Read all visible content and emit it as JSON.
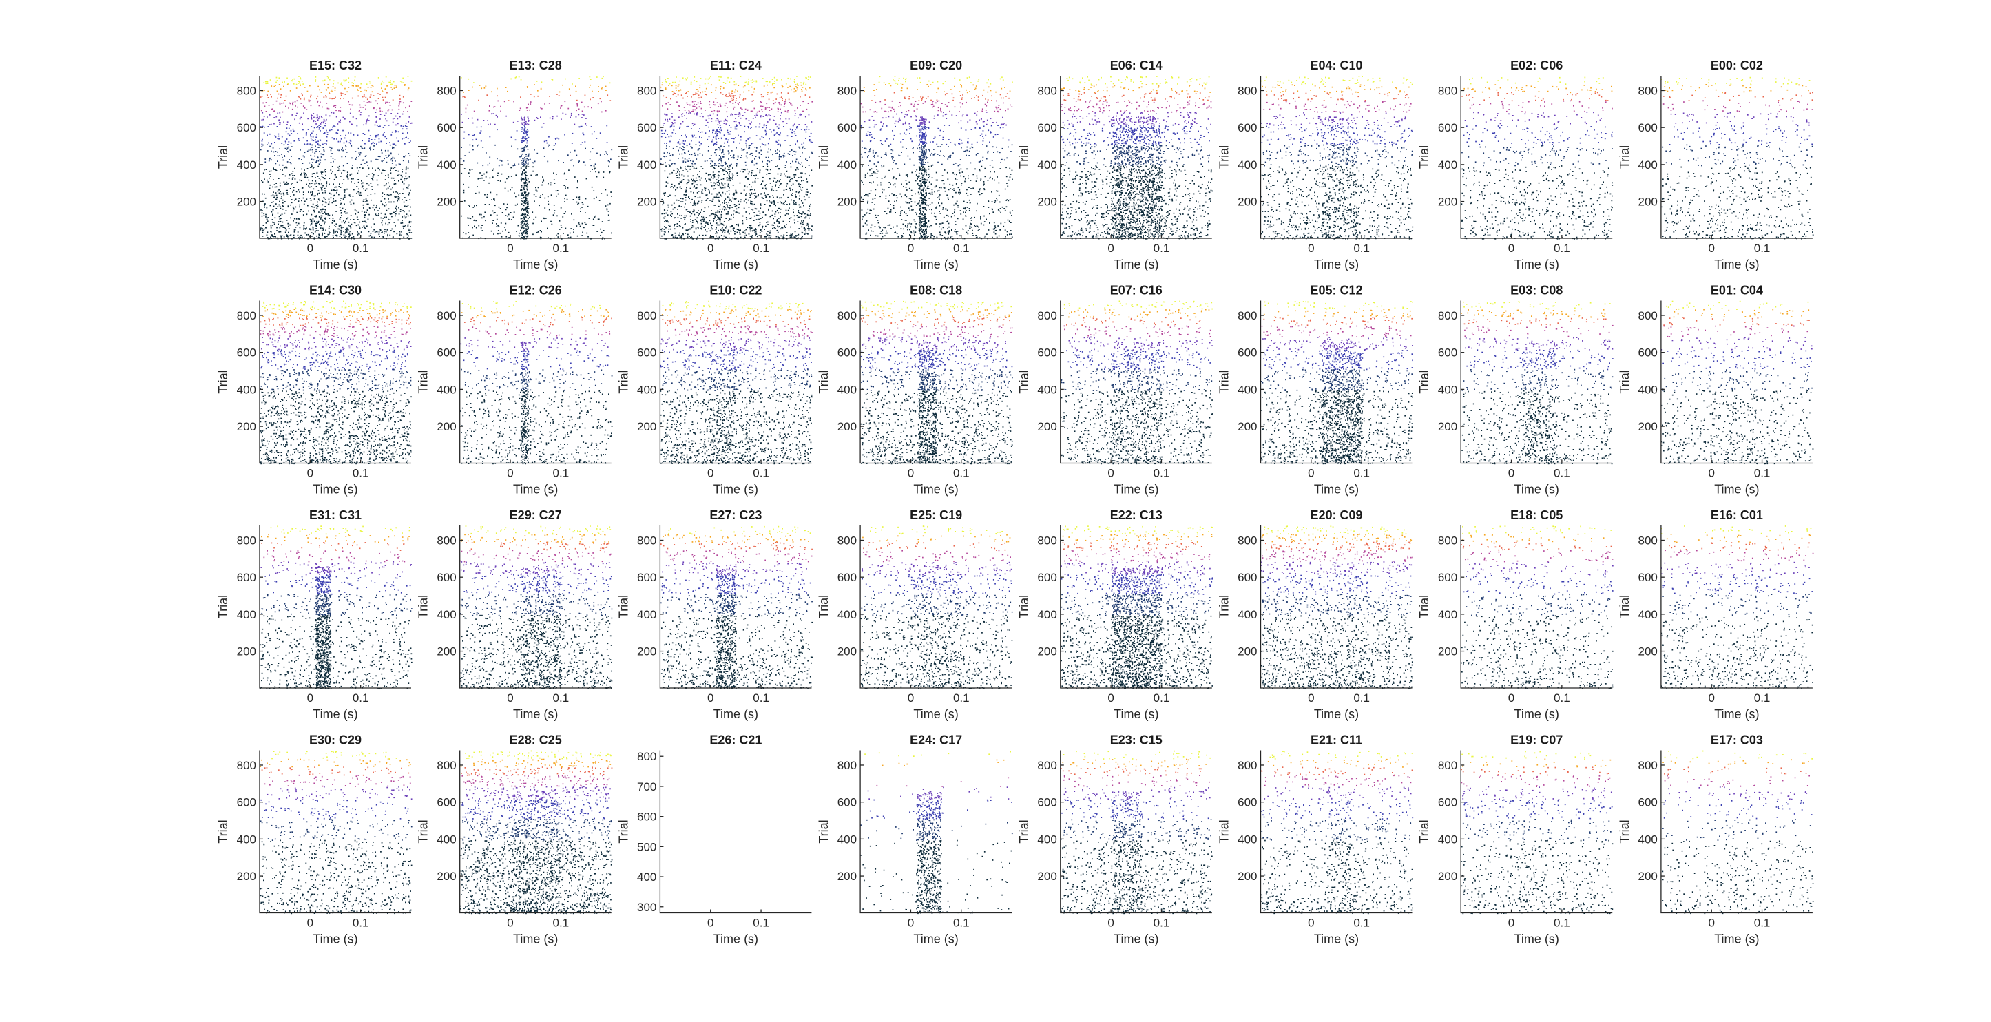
{
  "chart_data": {
    "type": "scatter",
    "description_layout": "4 rows x 8 columns of spike raster subplots",
    "colormap": [
      "#0d2a3a",
      "#1e3a6e",
      "#3b3fb0",
      "#6a3fb8",
      "#b4479a",
      "#e8664d",
      "#f5a623",
      "#e9f542"
    ],
    "xlabel": "Time (s)",
    "ylabel": "Trial",
    "xticks": [
      0,
      0.1
    ],
    "xtick_labels": [
      "0",
      "0.1"
    ],
    "xlim": [
      -0.1,
      0.2
    ],
    "ylim": [
      1,
      880
    ],
    "yticks": [
      200,
      400,
      600,
      800
    ],
    "ytick_labels": [
      "200",
      "400",
      "600",
      "800"
    ],
    "panels": [
      {
        "title": "E15: C32",
        "density": 0.65,
        "response": 0.1,
        "resp_t": [
          0.0,
          0.03
        ]
      },
      {
        "title": "E13: C28",
        "density": 0.25,
        "response": 0.25,
        "resp_t": [
          0.02,
          0.035
        ]
      },
      {
        "title": "E11: C24",
        "density": 0.75,
        "response": 0.1,
        "resp_t": [
          0.0,
          0.04
        ]
      },
      {
        "title": "E09: C20",
        "density": 0.45,
        "response": 0.3,
        "resp_t": [
          0.015,
          0.03
        ]
      },
      {
        "title": "E06: C14",
        "density": 0.55,
        "response": 0.8,
        "resp_t": [
          0.0,
          0.1
        ]
      },
      {
        "title": "E04: C10",
        "density": 0.45,
        "response": 0.25,
        "resp_t": [
          0.02,
          0.09
        ]
      },
      {
        "title": "E02: C06",
        "density": 0.3,
        "response": 0.05,
        "resp_t": [
          0.0,
          0.1
        ]
      },
      {
        "title": "E00: C02",
        "density": 0.28,
        "response": 0.05,
        "resp_t": [
          0.0,
          0.1
        ]
      },
      {
        "title": "E14: C30",
        "density": 0.75,
        "response": 0.05,
        "resp_t": [
          0.0,
          0.05
        ]
      },
      {
        "title": "E12: C26",
        "density": 0.35,
        "response": 0.2,
        "resp_t": [
          0.02,
          0.035
        ]
      },
      {
        "title": "E10: C22",
        "density": 0.65,
        "response": 0.15,
        "resp_t": [
          0.0,
          0.05
        ]
      },
      {
        "title": "E08: C18",
        "density": 0.6,
        "response": 0.4,
        "resp_t": [
          0.015,
          0.05
        ]
      },
      {
        "title": "E07: C16",
        "density": 0.45,
        "response": 0.35,
        "resp_t": [
          0.0,
          0.1
        ]
      },
      {
        "title": "E05: C12",
        "density": 0.45,
        "response": 0.7,
        "resp_t": [
          0.02,
          0.1
        ]
      },
      {
        "title": "E03: C08",
        "density": 0.35,
        "response": 0.25,
        "resp_t": [
          0.02,
          0.09
        ]
      },
      {
        "title": "E01: C04",
        "density": 0.32,
        "response": 0.05,
        "resp_t": [
          0.0,
          0.1
        ]
      },
      {
        "title": "E31: C31",
        "density": 0.35,
        "response": 0.55,
        "resp_t": [
          0.01,
          0.04
        ]
      },
      {
        "title": "E29: C27",
        "density": 0.5,
        "response": 0.35,
        "resp_t": [
          0.02,
          0.1
        ]
      },
      {
        "title": "E27: C23",
        "density": 0.45,
        "response": 0.4,
        "resp_t": [
          0.01,
          0.05
        ]
      },
      {
        "title": "E25: C19",
        "density": 0.4,
        "response": 0.25,
        "resp_t": [
          0.0,
          0.1
        ]
      },
      {
        "title": "E22: C13",
        "density": 0.55,
        "response": 0.85,
        "resp_t": [
          0.0,
          0.1
        ]
      },
      {
        "title": "E20: C09",
        "density": 0.6,
        "response": 0.1,
        "resp_t": [
          0.0,
          0.1
        ]
      },
      {
        "title": "E18: C05",
        "density": 0.3,
        "response": 0.05,
        "resp_t": [
          0.0,
          0.1
        ]
      },
      {
        "title": "E16: C01",
        "density": 0.3,
        "response": 0.05,
        "resp_t": [
          0.0,
          0.1
        ]
      },
      {
        "title": "E30: C29",
        "density": 0.35,
        "response": 0.05,
        "resp_t": [
          0.0,
          0.1
        ]
      },
      {
        "title": "E28: C25",
        "density": 0.75,
        "response": 0.35,
        "resp_t": [
          0.0,
          0.1
        ]
      },
      {
        "title": "E26: C21",
        "density": 0.0,
        "response": 0.0,
        "resp_t": [
          0.0,
          0.0
        ],
        "ylim": [
          280,
          820
        ],
        "yticks": [
          300,
          400,
          500,
          600,
          700,
          800
        ],
        "ytick_labels": [
          "300",
          "400",
          "500",
          "600",
          "700",
          "800"
        ]
      },
      {
        "title": "E24: C17",
        "density": 0.06,
        "response": 0.45,
        "resp_t": [
          0.01,
          0.06
        ]
      },
      {
        "title": "E23: C15",
        "density": 0.4,
        "response": 0.3,
        "resp_t": [
          0.0,
          0.06
        ]
      },
      {
        "title": "E21: C11",
        "density": 0.35,
        "response": 0.1,
        "resp_t": [
          0.03,
          0.08
        ]
      },
      {
        "title": "E19: C07",
        "density": 0.3,
        "response": 0.05,
        "resp_t": [
          0.0,
          0.1
        ]
      },
      {
        "title": "E17: C03",
        "density": 0.2,
        "response": 0.05,
        "resp_t": [
          0.0,
          0.1
        ]
      }
    ]
  }
}
